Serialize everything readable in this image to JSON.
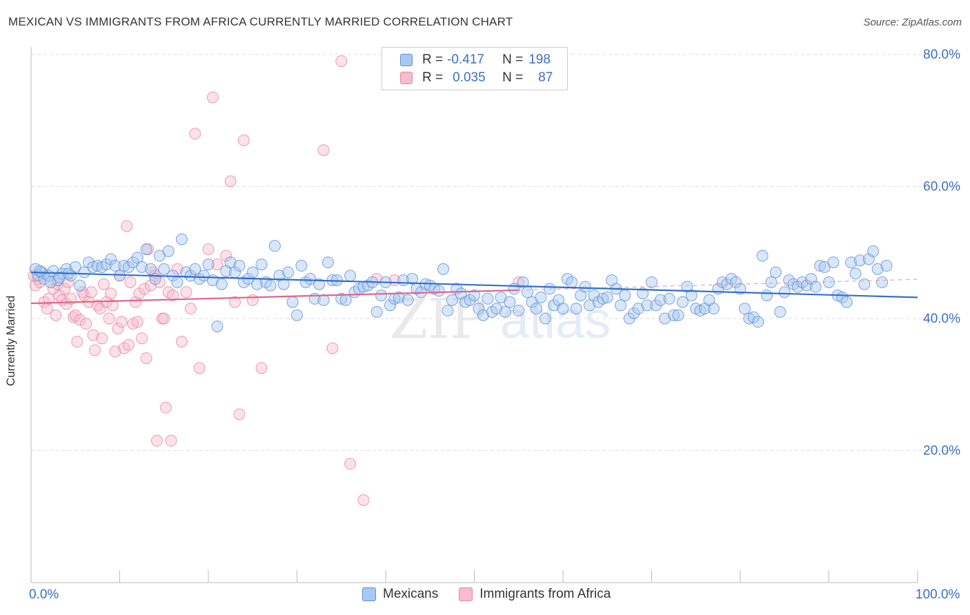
{
  "title": "MEXICAN VS IMMIGRANTS FROM AFRICA CURRENTLY MARRIED CORRELATION CHART",
  "source": "Source: ZipAtlas.com",
  "watermark": {
    "zip": "ZIP",
    "atlas": "atlas"
  },
  "legend": {
    "r_label": "R =",
    "n_label": "N =",
    "series": [
      {
        "name": "Mexicans",
        "r": "-0.417",
        "n": "198",
        "fill": "#a9c8f0",
        "stroke": "#5b8fd6"
      },
      {
        "name": "Immigrants from Africa",
        "r": "0.035",
        "n": "87",
        "fill": "#f7bccd",
        "stroke": "#e8849f"
      }
    ]
  },
  "chart_data": {
    "type": "scatter",
    "title": "MEXICAN VS IMMIGRANTS FROM AFRICA CURRENTLY MARRIED CORRELATION CHART",
    "xlabel": "",
    "ylabel": "Currently Married",
    "xlim": [
      0,
      100
    ],
    "ylim": [
      0,
      80
    ],
    "x_tick_labels": [
      "0.0%",
      "100.0%"
    ],
    "y_tick_labels": [
      "20.0%",
      "40.0%",
      "60.0%",
      "80.0%"
    ],
    "y_ticks": [
      20,
      40,
      60,
      80
    ],
    "grid": true,
    "legend_position": "top-center",
    "colors": {
      "mexicans_line": "#2f6fcf",
      "africa_line": "#e0648c",
      "tick_text": "#3a6fc4"
    },
    "series": [
      {
        "name": "Mexicans",
        "trend": {
          "x": [
            0,
            100
          ],
          "y": [
            47.0,
            43.2
          ]
        },
        "points": [
          [
            0.5,
            47.5
          ],
          [
            0.8,
            46.5
          ],
          [
            1.2,
            47.0
          ],
          [
            1.5,
            46.0
          ],
          [
            2.0,
            46.5
          ],
          [
            2.5,
            47.2
          ],
          [
            3.0,
            45.8
          ],
          [
            3.5,
            46.8
          ],
          [
            4.0,
            47.5
          ],
          [
            4.5,
            46.5
          ],
          [
            5.0,
            47.8
          ],
          [
            5.5,
            45.0
          ],
          [
            6.0,
            47.0
          ],
          [
            6.5,
            48.5
          ],
          [
            7.0,
            47.8
          ],
          [
            7.5,
            48.0
          ],
          [
            8.0,
            47.8
          ],
          [
            8.5,
            48.2
          ],
          [
            9.0,
            49.0
          ],
          [
            9.5,
            48.0
          ],
          [
            10.0,
            46.5
          ],
          [
            10.5,
            48.0
          ],
          [
            11.0,
            47.8
          ],
          [
            11.5,
            48.5
          ],
          [
            12.0,
            49.2
          ],
          [
            12.5,
            47.8
          ],
          [
            13.0,
            50.5
          ],
          [
            13.5,
            47.5
          ],
          [
            14.0,
            46.0
          ],
          [
            14.5,
            49.5
          ],
          [
            15.0,
            47.5
          ],
          [
            15.5,
            50.2
          ],
          [
            16.0,
            46.5
          ],
          [
            16.5,
            45.5
          ],
          [
            17.0,
            52.0
          ],
          [
            17.5,
            47.0
          ],
          [
            18.0,
            46.5
          ],
          [
            18.5,
            47.5
          ],
          [
            19.0,
            46.0
          ],
          [
            19.5,
            46.5
          ],
          [
            20.0,
            48.2
          ],
          [
            20.5,
            45.8
          ],
          [
            21.0,
            38.8
          ],
          [
            21.5,
            45.2
          ],
          [
            22.0,
            47.2
          ],
          [
            22.5,
            48.5
          ],
          [
            23.0,
            47.0
          ],
          [
            23.5,
            48.0
          ],
          [
            24.0,
            45.5
          ],
          [
            24.5,
            46.0
          ],
          [
            25.0,
            47.0
          ],
          [
            25.5,
            45.2
          ],
          [
            26.0,
            48.2
          ],
          [
            26.5,
            45.5
          ],
          [
            27.0,
            45.0
          ],
          [
            27.5,
            51.0
          ],
          [
            28.0,
            46.5
          ],
          [
            28.5,
            45.2
          ],
          [
            29.0,
            47.0
          ],
          [
            29.5,
            42.5
          ],
          [
            30.0,
            40.5
          ],
          [
            30.5,
            48.0
          ],
          [
            31.0,
            45.5
          ],
          [
            31.5,
            46.0
          ],
          [
            32.0,
            43.0
          ],
          [
            32.5,
            45.2
          ],
          [
            33.0,
            42.8
          ],
          [
            33.5,
            48.5
          ],
          [
            34.0,
            45.8
          ],
          [
            34.5,
            45.8
          ],
          [
            35.0,
            43.0
          ],
          [
            35.5,
            42.8
          ],
          [
            36.0,
            46.5
          ],
          [
            36.5,
            44.0
          ],
          [
            37.0,
            44.5
          ],
          [
            37.5,
            44.8
          ],
          [
            38.0,
            45.0
          ],
          [
            38.5,
            45.5
          ],
          [
            39.0,
            41.0
          ],
          [
            39.5,
            43.5
          ],
          [
            40.0,
            45.5
          ],
          [
            40.5,
            42.0
          ],
          [
            41.0,
            43.0
          ],
          [
            41.5,
            43.2
          ],
          [
            42.0,
            45.8
          ],
          [
            42.5,
            42.8
          ],
          [
            43.0,
            46.0
          ],
          [
            43.5,
            44.5
          ],
          [
            44.0,
            44.0
          ],
          [
            44.5,
            45.2
          ],
          [
            45.0,
            45.0
          ],
          [
            45.5,
            44.5
          ],
          [
            46.0,
            44.2
          ],
          [
            46.5,
            47.5
          ],
          [
            47.0,
            41.2
          ],
          [
            47.5,
            42.8
          ],
          [
            48.0,
            44.5
          ],
          [
            48.5,
            43.8
          ],
          [
            49.0,
            42.5
          ],
          [
            49.5,
            42.8
          ],
          [
            50.0,
            43.5
          ],
          [
            50.5,
            41.5
          ],
          [
            51.0,
            40.5
          ],
          [
            51.5,
            43.0
          ],
          [
            52.0,
            41.0
          ],
          [
            52.5,
            41.5
          ],
          [
            53.0,
            43.2
          ],
          [
            53.5,
            41.0
          ],
          [
            54.0,
            42.5
          ],
          [
            54.5,
            44.5
          ],
          [
            55.0,
            41.2
          ],
          [
            55.5,
            45.5
          ],
          [
            56.0,
            44.0
          ],
          [
            56.5,
            42.5
          ],
          [
            57.0,
            41.5
          ],
          [
            57.5,
            43.2
          ],
          [
            58.0,
            40.0
          ],
          [
            58.5,
            44.5
          ],
          [
            59.0,
            42.0
          ],
          [
            59.5,
            42.8
          ],
          [
            60.0,
            41.5
          ],
          [
            60.5,
            46.0
          ],
          [
            61.0,
            45.5
          ],
          [
            61.5,
            41.5
          ],
          [
            62.0,
            43.5
          ],
          [
            62.5,
            44.8
          ],
          [
            63.0,
            42.0
          ],
          [
            63.5,
            43.5
          ],
          [
            64.0,
            42.5
          ],
          [
            64.5,
            43.0
          ],
          [
            65.0,
            43.2
          ],
          [
            65.5,
            45.8
          ],
          [
            66.0,
            44.5
          ],
          [
            66.5,
            42.0
          ],
          [
            67.0,
            43.5
          ],
          [
            67.5,
            40.0
          ],
          [
            68.0,
            40.8
          ],
          [
            68.5,
            41.5
          ],
          [
            69.0,
            43.8
          ],
          [
            69.5,
            42.0
          ],
          [
            70.0,
            45.5
          ],
          [
            70.5,
            42.0
          ],
          [
            71.0,
            42.8
          ],
          [
            71.5,
            40.0
          ],
          [
            72.0,
            43.0
          ],
          [
            72.5,
            40.5
          ],
          [
            73.0,
            40.5
          ],
          [
            73.5,
            42.5
          ],
          [
            74.0,
            44.8
          ],
          [
            74.5,
            43.5
          ],
          [
            75.0,
            41.5
          ],
          [
            75.5,
            41.2
          ],
          [
            76.0,
            41.5
          ],
          [
            76.5,
            42.8
          ],
          [
            77.0,
            41.5
          ],
          [
            77.5,
            44.5
          ],
          [
            78.0,
            45.5
          ],
          [
            78.5,
            45.2
          ],
          [
            79.0,
            46.0
          ],
          [
            79.5,
            45.5
          ],
          [
            80.0,
            44.5
          ],
          [
            80.5,
            41.5
          ],
          [
            81.0,
            40.0
          ],
          [
            81.5,
            40.2
          ],
          [
            82.0,
            39.5
          ],
          [
            82.5,
            49.5
          ],
          [
            83.0,
            43.5
          ],
          [
            83.5,
            45.5
          ],
          [
            84.0,
            47.0
          ],
          [
            84.5,
            41.0
          ],
          [
            85.0,
            44.0
          ],
          [
            85.5,
            45.8
          ],
          [
            86.0,
            45.2
          ],
          [
            86.5,
            44.8
          ],
          [
            87.0,
            45.5
          ],
          [
            87.5,
            45.0
          ],
          [
            88.0,
            46.0
          ],
          [
            88.5,
            44.8
          ],
          [
            89.0,
            48.0
          ],
          [
            89.5,
            47.8
          ],
          [
            90.0,
            45.5
          ],
          [
            90.5,
            48.5
          ],
          [
            91.0,
            43.5
          ],
          [
            91.5,
            43.2
          ],
          [
            92.0,
            42.5
          ],
          [
            92.5,
            48.5
          ],
          [
            93.0,
            46.8
          ],
          [
            93.5,
            48.8
          ],
          [
            94.0,
            45.2
          ],
          [
            94.5,
            49.0
          ],
          [
            95.0,
            50.2
          ],
          [
            95.5,
            47.5
          ],
          [
            96.0,
            45.5
          ],
          [
            96.5,
            48.0
          ],
          [
            1.0,
            47.2
          ],
          [
            2.2,
            45.5
          ],
          [
            3.2,
            46.2
          ],
          [
            4.2,
            46.8
          ]
        ]
      },
      {
        "name": "Immigrants from Africa",
        "trend": {
          "x": [
            0,
            55
          ],
          "y": [
            42.3,
            44.3
          ]
        },
        "points": [
          [
            0.3,
            46.5
          ],
          [
            0.5,
            45.0
          ],
          [
            0.8,
            46.0
          ],
          [
            1.0,
            45.5
          ],
          [
            1.2,
            47.0
          ],
          [
            1.5,
            42.5
          ],
          [
            1.8,
            41.5
          ],
          [
            2.0,
            43.0
          ],
          [
            2.5,
            44.5
          ],
          [
            2.8,
            40.5
          ],
          [
            3.0,
            45.2
          ],
          [
            3.2,
            43.5
          ],
          [
            3.5,
            42.8
          ],
          [
            3.8,
            44.5
          ],
          [
            4.0,
            42.2
          ],
          [
            4.2,
            45.5
          ],
          [
            4.5,
            43.0
          ],
          [
            4.8,
            40.2
          ],
          [
            5.0,
            40.5
          ],
          [
            5.2,
            36.5
          ],
          [
            5.5,
            39.8
          ],
          [
            5.8,
            44.0
          ],
          [
            6.0,
            43.5
          ],
          [
            6.2,
            39.2
          ],
          [
            6.5,
            42.5
          ],
          [
            6.8,
            44.0
          ],
          [
            7.0,
            37.5
          ],
          [
            7.2,
            35.2
          ],
          [
            7.5,
            42.0
          ],
          [
            7.8,
            41.5
          ],
          [
            8.0,
            37.0
          ],
          [
            8.2,
            45.2
          ],
          [
            8.5,
            42.5
          ],
          [
            8.8,
            40.0
          ],
          [
            9.0,
            43.8
          ],
          [
            9.2,
            42.0
          ],
          [
            9.5,
            35.0
          ],
          [
            9.8,
            38.5
          ],
          [
            10.0,
            46.5
          ],
          [
            10.2,
            39.5
          ],
          [
            10.5,
            35.5
          ],
          [
            10.8,
            54.0
          ],
          [
            11.0,
            36.0
          ],
          [
            11.2,
            45.5
          ],
          [
            11.5,
            39.2
          ],
          [
            11.8,
            42.5
          ],
          [
            12.0,
            39.5
          ],
          [
            12.2,
            43.8
          ],
          [
            12.5,
            37.0
          ],
          [
            12.8,
            44.5
          ],
          [
            13.0,
            34.0
          ],
          [
            13.2,
            50.5
          ],
          [
            13.5,
            45.0
          ],
          [
            13.8,
            47.0
          ],
          [
            14.0,
            46.5
          ],
          [
            14.2,
            21.5
          ],
          [
            14.5,
            45.5
          ],
          [
            14.8,
            40.0
          ],
          [
            15.0,
            40.0
          ],
          [
            15.2,
            26.5
          ],
          [
            15.5,
            44.0
          ],
          [
            15.8,
            21.5
          ],
          [
            16.0,
            43.5
          ],
          [
            16.5,
            47.5
          ],
          [
            17.0,
            36.5
          ],
          [
            17.5,
            44.0
          ],
          [
            18.0,
            41.5
          ],
          [
            18.5,
            68.0
          ],
          [
            19.0,
            32.5
          ],
          [
            20.0,
            50.5
          ],
          [
            20.5,
            73.5
          ],
          [
            21.0,
            48.2
          ],
          [
            22.0,
            49.5
          ],
          [
            22.5,
            60.8
          ],
          [
            23.0,
            42.5
          ],
          [
            23.5,
            25.5
          ],
          [
            24.0,
            67.0
          ],
          [
            25.0,
            42.8
          ],
          [
            26.0,
            32.5
          ],
          [
            33.0,
            65.5
          ],
          [
            34.0,
            35.5
          ],
          [
            35.0,
            79.0
          ],
          [
            36.0,
            18.0
          ],
          [
            37.5,
            12.5
          ],
          [
            39.0,
            46.0
          ],
          [
            41.0,
            45.8
          ],
          [
            55.0,
            45.5
          ]
        ]
      }
    ]
  }
}
